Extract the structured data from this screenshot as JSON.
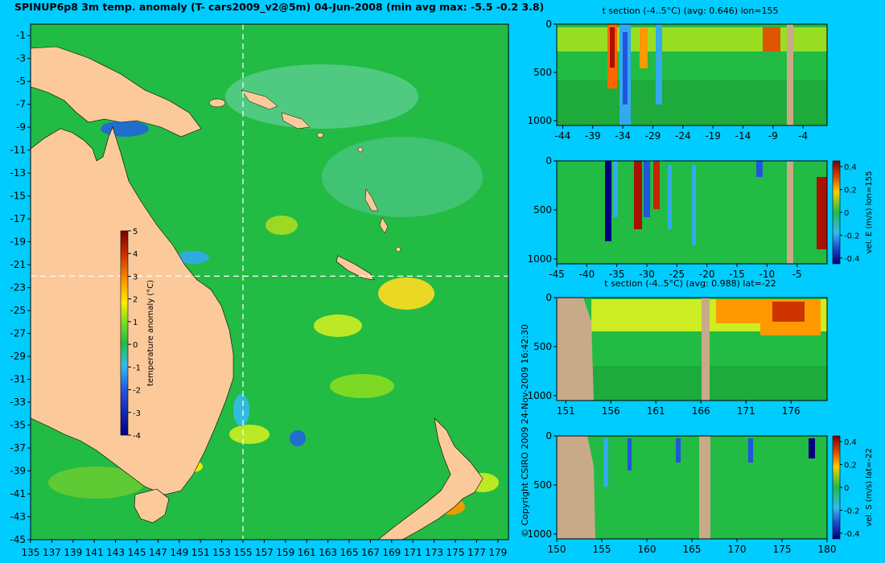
{
  "title": "SPINUP6p8 3m temp. anomaly (T- cars2009_v2@5m) 04-Jun-2008 (min avg max: -5.5 -0.2 3.8)",
  "copyright": "© Copyright CSIRO 2009   24-Nov-2009 16:42:30",
  "colors": {
    "background": "#00ccff",
    "ocean": "#22bb44",
    "land": "#fcca9a",
    "section_land": "#c8aa88",
    "crosshair": "#ffffff"
  },
  "chart_data": [
    {
      "type": "heatmap",
      "title": "SPINUP6p8 3m temp. anomaly (T- cars2009_v2@5m) 04-Jun-2008 (min avg max: -5.5 -0.2 3.8)",
      "x_ticks": [
        135,
        137,
        139,
        141,
        143,
        145,
        147,
        149,
        151,
        153,
        155,
        157,
        159,
        161,
        163,
        165,
        167,
        169,
        171,
        173,
        175,
        177,
        179
      ],
      "y_ticks": [
        -1,
        -3,
        -5,
        -7,
        -9,
        -11,
        -13,
        -15,
        -17,
        -19,
        -21,
        -23,
        -25,
        -27,
        -29,
        -31,
        -33,
        -35,
        -37,
        -39,
        -41,
        -43,
        -45
      ],
      "xlim": [
        135,
        180
      ],
      "ylim": [
        -45,
        0
      ],
      "crosshair": {
        "lon": 155,
        "lat": -22
      },
      "colorbar": {
        "label": "temperature anomaly (°C)",
        "range": [
          -4,
          5
        ],
        "ticks": [
          "5",
          "4",
          "3",
          "2",
          "1",
          "0",
          "-1",
          "-2",
          "-3",
          "-4"
        ]
      }
    },
    {
      "type": "heatmap",
      "title": "t section (-4..5°C) (avg: 0.646) lon=155",
      "x_ticks": [
        "-44",
        "-39",
        "-34",
        "-29",
        "-24",
        "-19",
        "-14",
        "-9",
        "-4"
      ],
      "xlim": [
        -45,
        0
      ],
      "y_ticks": [
        "0",
        "500",
        "1000"
      ],
      "ylim": [
        0,
        1050
      ]
    },
    {
      "type": "heatmap",
      "title": "",
      "x_ticks": [
        "-45",
        "-40",
        "-35",
        "-30",
        "-25",
        "-20",
        "-15",
        "-10",
        "-5"
      ],
      "xlim": [
        -45,
        0
      ],
      "y_ticks": [
        "0",
        "500",
        "1000"
      ],
      "ylim": [
        0,
        1050
      ],
      "colorbar": {
        "label": "vel. E (m/s) lon=155",
        "ticks": [
          "0.4",
          "0.2",
          "0",
          "-0.2",
          "-0.4"
        ],
        "range": [
          -0.45,
          0.45
        ]
      }
    },
    {
      "type": "heatmap",
      "title": "t section (-4..5°C) (avg: 0.988) lat=-22",
      "x_ticks": [
        "151",
        "156",
        "161",
        "166",
        "171",
        "176"
      ],
      "xlim": [
        150,
        180
      ],
      "y_ticks": [
        "0",
        "500",
        "1000"
      ],
      "ylim": [
        0,
        1050
      ]
    },
    {
      "type": "heatmap",
      "title": "",
      "x_ticks": [
        "150",
        "155",
        "160",
        "165",
        "170",
        "175",
        "180"
      ],
      "xlim": [
        150,
        180
      ],
      "y_ticks": [
        "0",
        "500",
        "1000"
      ],
      "ylim": [
        0,
        1050
      ],
      "colorbar": {
        "label": "vel. S (m/s) lat=-22",
        "ticks": [
          "0.4",
          "0.2",
          "0",
          "-0.2",
          "-0.4"
        ],
        "range": [
          -0.45,
          0.45
        ]
      }
    }
  ]
}
